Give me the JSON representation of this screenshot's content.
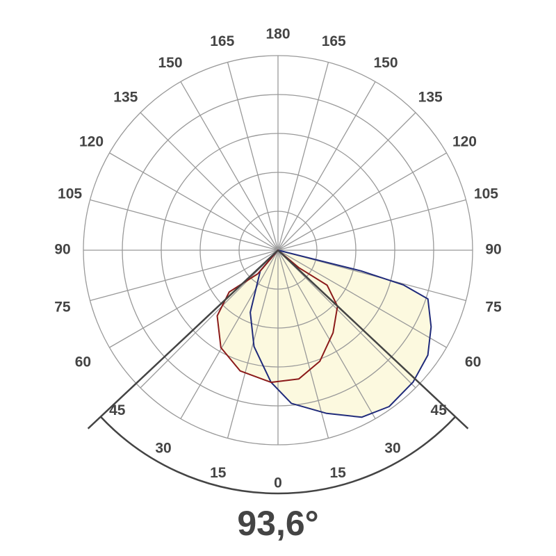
{
  "chart_data": {
    "type": "polar",
    "angles": [
      0,
      15,
      30,
      45,
      60,
      75,
      90,
      105,
      120,
      135,
      150,
      165,
      180
    ],
    "rlim": [
      0,
      1
    ],
    "series": [
      {
        "color": "#1f2a7a",
        "angles": [
          -40.6,
          -24,
          -14,
          -3,
          5,
          16.6,
          26.6,
          35.4,
          45.7,
          55,
          63.4,
          72,
          74.5,
          76,
          76
        ],
        "values": [
          0.14,
          0.35,
          0.51,
          0.68,
          0.79,
          0.875,
          0.96,
          0.986,
          0.97,
          0.94,
          0.88,
          0.81,
          0.67,
          0.44,
          0.15
        ]
      },
      {
        "color": "#8b1a1a",
        "angles": [
          -40.6,
          -49.4,
          -42.8,
          -30.4,
          -17.4,
          -3,
          9.2,
          20.6,
          33.7,
          46.7,
          54.5,
          50
        ],
        "values": [
          0.16,
          0.33,
          0.46,
          0.58,
          0.65,
          0.68,
          0.67,
          0.61,
          0.51,
          0.42,
          0.31,
          0.14
        ]
      }
    ],
    "fill_color": "#fcf9df",
    "beam_angle": {
      "value": 93.6,
      "label": "93,6°"
    }
  }
}
